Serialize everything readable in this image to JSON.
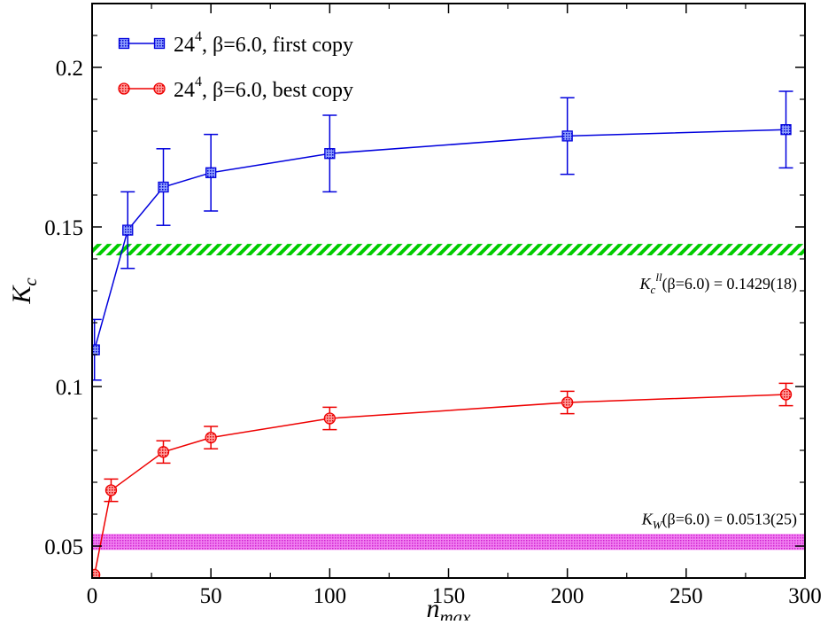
{
  "chart_data": {
    "type": "line",
    "title": "",
    "xlabel": "n",
    "xlabel_sub": "max",
    "ylabel": "K",
    "ylabel_sub": "c",
    "xlim": [
      0,
      300
    ],
    "ylim": [
      0.04,
      0.22
    ],
    "x_ticks": [
      0,
      50,
      100,
      150,
      200,
      250,
      300
    ],
    "x_tick_labels": [
      "0",
      "50",
      "100",
      "150",
      "200",
      "250",
      "300"
    ],
    "y_ticks": [
      0.05,
      0.1,
      0.15,
      0.2
    ],
    "y_tick_labels": [
      "0.05",
      "0.1",
      "0.15",
      "0.2"
    ],
    "grid": false,
    "legend_position": "top-left",
    "series": [
      {
        "name": "24^4, β=6.0, first copy",
        "legend_main": "24",
        "legend_sup": "4",
        "legend_rest": ", β=6.0, first copy",
        "color": "#0000dd",
        "marker": "square",
        "x": [
          1,
          15,
          30,
          50,
          100,
          200,
          292
        ],
        "y": [
          0.1115,
          0.149,
          0.1625,
          0.167,
          0.173,
          0.1785,
          0.1805
        ],
        "err": [
          0.0095,
          0.012,
          0.012,
          0.012,
          0.012,
          0.012,
          0.012
        ]
      },
      {
        "name": "24^4, β=6.0, best copy",
        "legend_main": "24",
        "legend_sup": "4",
        "legend_rest": ", β=6.0, best copy",
        "color": "#ee0000",
        "marker": "circle",
        "x": [
          1,
          8,
          30,
          50,
          100,
          200,
          292
        ],
        "y": [
          0.041,
          0.0675,
          0.0795,
          0.084,
          0.09,
          0.095,
          0.0975
        ],
        "err": [
          0.0,
          0.0035,
          0.0035,
          0.0035,
          0.0035,
          0.0035,
          0.0035
        ]
      }
    ],
    "bands": [
      {
        "name": "K_c^ll band",
        "value": 0.1429,
        "err": 0.0018,
        "color": "#00cc00",
        "pattern": "hatched",
        "label_main": "K",
        "label_sub": "c",
        "label_sup": "ll",
        "label_rest": "(β=6.0) = 0.1429(18)"
      },
      {
        "name": "K_W band",
        "value": 0.0513,
        "err": 0.0025,
        "color": "#e040e0",
        "pattern": "dotted",
        "label_main": "K",
        "label_sub": "W",
        "label_rest": "(β=6.0) = 0.0513(25)"
      }
    ]
  }
}
